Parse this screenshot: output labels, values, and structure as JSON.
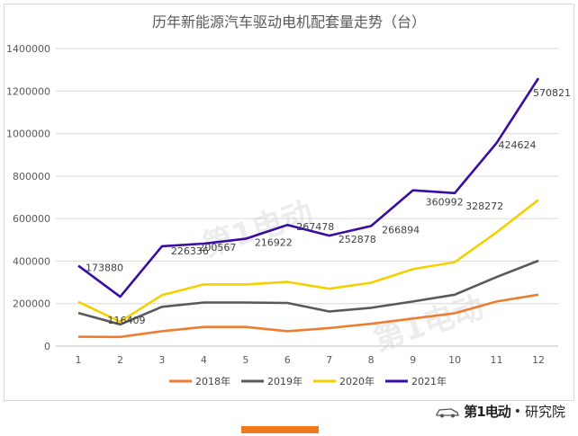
{
  "chart_data": {
    "type": "line",
    "title": "历年新能源汽车驱动电机配套量走势（台）",
    "categories": [
      "1",
      "2",
      "3",
      "4",
      "5",
      "6",
      "7",
      "8",
      "9",
      "10",
      "11",
      "12"
    ],
    "ylim": [
      0,
      1400000
    ],
    "yticks": [
      "0",
      "200000",
      "400000",
      "600000",
      "800000",
      "1000000",
      "1200000",
      "1400000"
    ],
    "ytick_values": [
      0,
      200000,
      400000,
      600000,
      800000,
      1000000,
      1200000,
      1400000
    ],
    "grid": true,
    "legend_position": "bottom",
    "series": [
      {
        "name": "2018年",
        "color": "#ed7d31",
        "values": [
          44000,
          43000,
          70000,
          90000,
          90000,
          70000,
          85000,
          105000,
          130000,
          155000,
          210000,
          242000
        ]
      },
      {
        "name": "2019年",
        "color": "#595959",
        "values": [
          156000,
          102000,
          185000,
          205000,
          205000,
          203000,
          163000,
          180000,
          210000,
          242000,
          325000,
          402000
        ]
      },
      {
        "name": "2020年",
        "color": "#f5d000",
        "values": [
          208000,
          115000,
          240000,
          290000,
          290000,
          302000,
          270000,
          298000,
          362000,
          395000,
          535000,
          688000
        ]
      },
      {
        "name": "2021年",
        "color": "#3a0ca3",
        "values": [
          378000,
          232000,
          470000,
          482000,
          505000,
          570000,
          520000,
          565000,
          733000,
          720000,
          955000,
          1260000
        ]
      }
    ],
    "data_labels": [
      {
        "text": "173880",
        "i": 0
      },
      {
        "text": "116409",
        "i": 1
      },
      {
        "text": "226336",
        "i": 2
      },
      {
        "text": "200567",
        "i": 3
      },
      {
        "text": "216922",
        "i": 4
      },
      {
        "text": "267478",
        "i": 5
      },
      {
        "text": "252878",
        "i": 6
      },
      {
        "text": "266894",
        "i": 7
      },
      {
        "text": "360992",
        "i": 8
      },
      {
        "text": "328272",
        "i": 9
      },
      {
        "text": "424624",
        "i": 10
      },
      {
        "text": "570821",
        "i": 11
      }
    ]
  },
  "watermark": "第1电动",
  "brand": {
    "name": "第1电动",
    "separator": "•",
    "sub": "研究院"
  }
}
